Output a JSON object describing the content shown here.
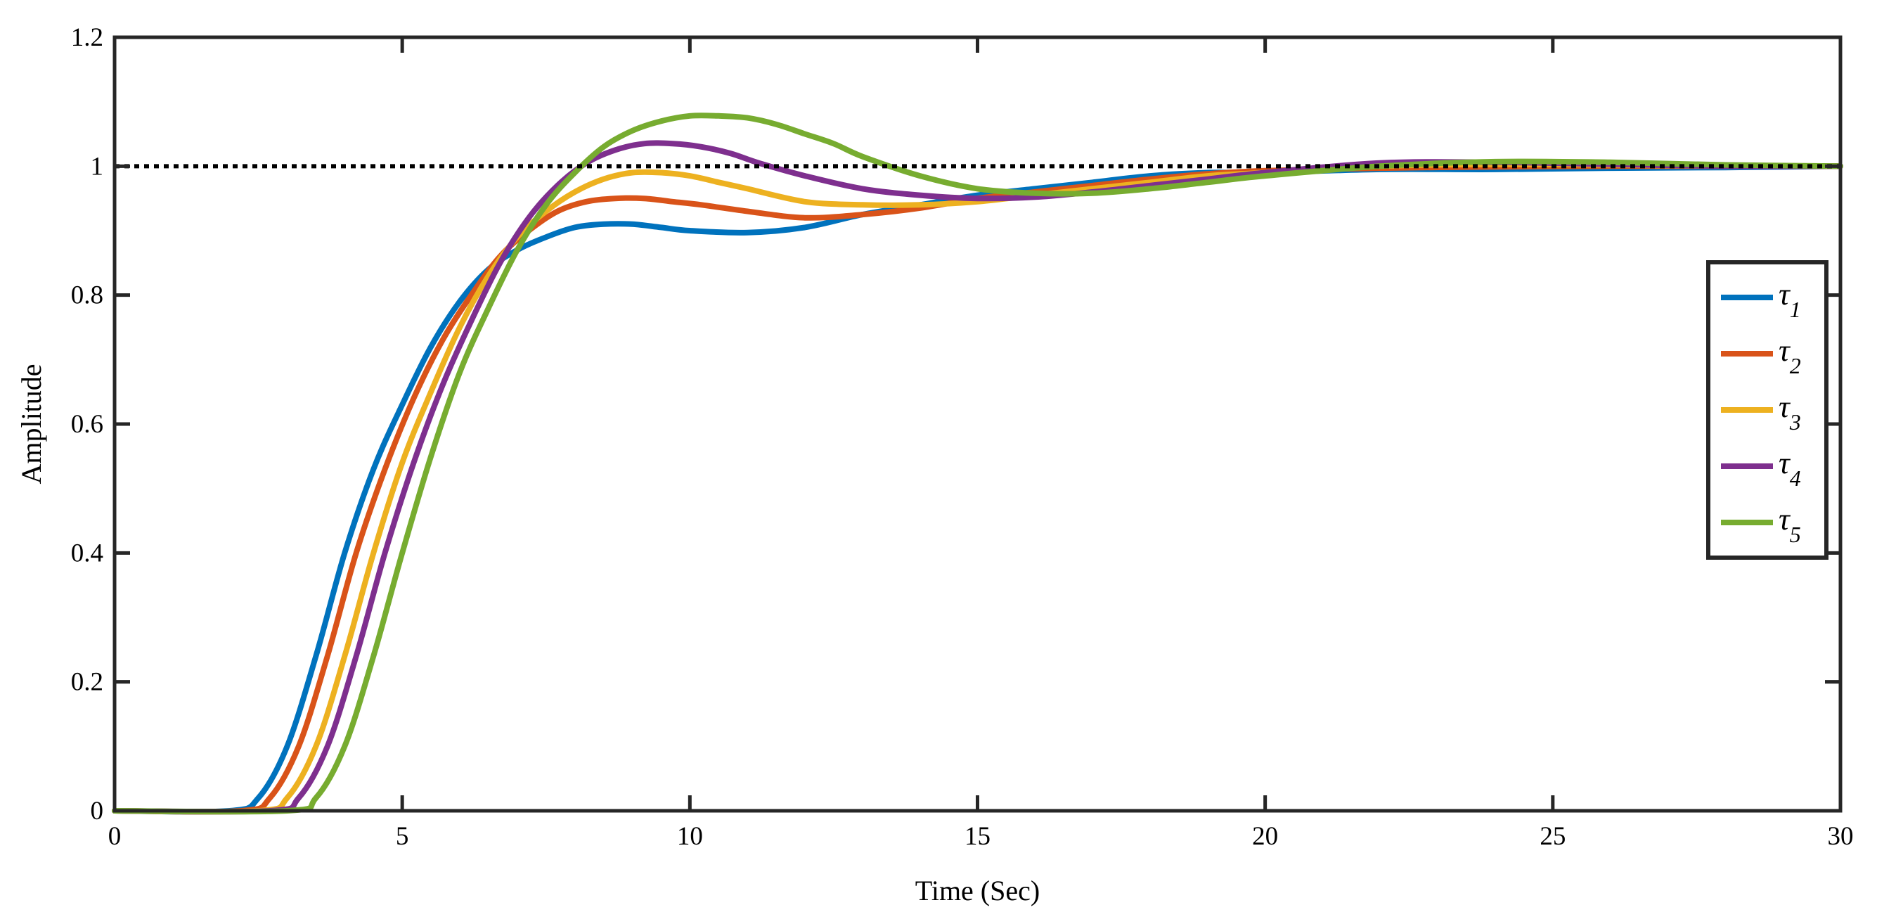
{
  "chart_data": {
    "type": "line",
    "title": "",
    "xlabel": "Time (Sec)",
    "ylabel": "Amplitude",
    "xlim": [
      0,
      30
    ],
    "ylim": [
      0,
      1.2
    ],
    "xticks": [
      0,
      5,
      10,
      15,
      20,
      25,
      30
    ],
    "yticks": [
      0,
      0.2,
      0.4,
      0.6,
      0.8,
      1,
      1.2
    ],
    "xtick_labels": [
      "0",
      "5",
      "10",
      "15",
      "20",
      "25",
      "30"
    ],
    "ytick_labels": [
      "0",
      "0.2",
      "0.4",
      "0.6",
      "0.8",
      "1",
      "1.2"
    ],
    "grid": false,
    "legend_position": "right",
    "reference_line": {
      "y": 1,
      "style": "dotted",
      "color": "#000000"
    },
    "series": [
      {
        "name": "τ1",
        "symbol": "τ",
        "subscript": "1",
        "color": "#0072BD",
        "x": [
          0,
          2.0,
          2.5,
          3.0,
          3.5,
          4.0,
          4.5,
          5.0,
          5.5,
          6.0,
          6.5,
          7.0,
          7.5,
          8.0,
          8.5,
          9.0,
          9.5,
          10.0,
          11.0,
          12.0,
          13.0,
          14.0,
          15.0,
          16.0,
          17.0,
          18.0,
          19.0,
          20.0,
          22.0,
          24.0,
          26.0,
          28.0,
          30.0
        ],
        "y": [
          0,
          0,
          0.02,
          0.1,
          0.24,
          0.4,
          0.53,
          0.63,
          0.72,
          0.79,
          0.84,
          0.87,
          0.89,
          0.905,
          0.91,
          0.91,
          0.905,
          0.9,
          0.897,
          0.905,
          0.925,
          0.94,
          0.955,
          0.965,
          0.975,
          0.985,
          0.99,
          0.99,
          0.995,
          0.995,
          0.997,
          0.998,
          1.0
        ]
      },
      {
        "name": "τ2",
        "symbol": "τ",
        "subscript": "2",
        "color": "#D95319",
        "x": [
          0,
          2.2,
          2.7,
          3.2,
          3.7,
          4.2,
          4.7,
          5.2,
          5.7,
          6.2,
          6.7,
          7.2,
          7.7,
          8.2,
          8.7,
          9.2,
          9.7,
          10.2,
          11.0,
          12.0,
          13.0,
          14.0,
          15.0,
          16.0,
          17.0,
          18.0,
          19.0,
          20.0,
          22.0,
          24.0,
          26.0,
          28.0,
          30.0
        ],
        "y": [
          0,
          0,
          0.02,
          0.1,
          0.24,
          0.4,
          0.53,
          0.64,
          0.73,
          0.8,
          0.86,
          0.9,
          0.93,
          0.945,
          0.95,
          0.95,
          0.945,
          0.94,
          0.93,
          0.92,
          0.925,
          0.935,
          0.95,
          0.96,
          0.97,
          0.98,
          0.988,
          0.993,
          0.997,
          0.999,
          1.0,
          1.0,
          1.0
        ]
      },
      {
        "name": "τ3",
        "symbol": "τ",
        "subscript": "3",
        "color": "#EDB120",
        "x": [
          0,
          2.5,
          3.0,
          3.5,
          4.0,
          4.5,
          5.0,
          5.5,
          6.0,
          6.5,
          7.0,
          7.5,
          8.0,
          8.5,
          9.0,
          9.5,
          10.0,
          10.5,
          11.0,
          12.0,
          13.0,
          14.0,
          15.0,
          16.0,
          17.0,
          18.0,
          19.0,
          20.0,
          22.0,
          24.0,
          26.0,
          28.0,
          30.0
        ],
        "y": [
          0,
          0,
          0.02,
          0.1,
          0.24,
          0.4,
          0.54,
          0.65,
          0.75,
          0.83,
          0.89,
          0.93,
          0.96,
          0.98,
          0.99,
          0.99,
          0.985,
          0.975,
          0.965,
          0.945,
          0.94,
          0.94,
          0.945,
          0.955,
          0.965,
          0.975,
          0.985,
          0.99,
          1.0,
          1.003,
          1.002,
          1.0,
          1.0
        ]
      },
      {
        "name": "τ4",
        "symbol": "τ",
        "subscript": "4",
        "color": "#7E2F8E",
        "x": [
          0,
          2.7,
          3.2,
          3.7,
          4.2,
          4.7,
          5.2,
          5.7,
          6.2,
          6.7,
          7.2,
          7.7,
          8.2,
          8.7,
          9.2,
          9.7,
          10.2,
          10.7,
          11.2,
          12.0,
          13.0,
          14.0,
          15.0,
          16.0,
          17.0,
          18.0,
          19.0,
          20.0,
          22.0,
          24.0,
          26.0,
          28.0,
          30.0
        ],
        "y": [
          0,
          0,
          0.02,
          0.1,
          0.24,
          0.4,
          0.54,
          0.66,
          0.76,
          0.85,
          0.92,
          0.97,
          1.005,
          1.025,
          1.035,
          1.035,
          1.03,
          1.02,
          1.005,
          0.985,
          0.965,
          0.955,
          0.95,
          0.952,
          0.96,
          0.97,
          0.98,
          0.99,
          1.005,
          1.006,
          1.003,
          1.0,
          1.0
        ]
      },
      {
        "name": "τ5",
        "symbol": "τ",
        "subscript": "5",
        "color": "#77AC30",
        "x": [
          0,
          3.0,
          3.5,
          4.0,
          4.5,
          5.0,
          5.5,
          6.0,
          6.5,
          7.0,
          7.5,
          8.0,
          8.5,
          9.0,
          9.5,
          10.0,
          10.5,
          11.0,
          11.5,
          12.0,
          12.5,
          13.0,
          14.0,
          15.0,
          16.0,
          17.0,
          18.0,
          19.0,
          20.0,
          22.0,
          24.0,
          26.0,
          28.0,
          30.0
        ],
        "y": [
          0,
          0,
          0.02,
          0.1,
          0.24,
          0.4,
          0.55,
          0.68,
          0.78,
          0.87,
          0.94,
          0.99,
          1.03,
          1.055,
          1.07,
          1.078,
          1.078,
          1.075,
          1.065,
          1.05,
          1.035,
          1.015,
          0.985,
          0.965,
          0.958,
          0.958,
          0.965,
          0.975,
          0.985,
          1.0,
          1.007,
          1.006,
          1.002,
          1.0
        ]
      }
    ]
  }
}
